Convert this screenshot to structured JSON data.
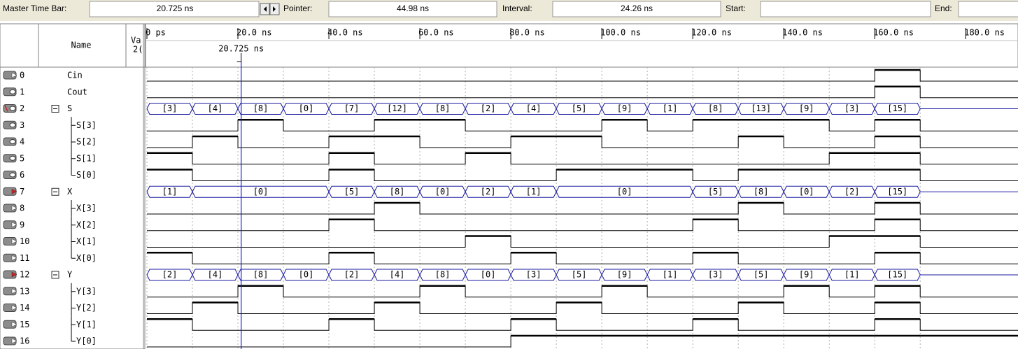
{
  "toolbar": {
    "master_label": "Master Time Bar:",
    "master_value": "20.725 ns",
    "pointer_label": "Pointer:",
    "pointer_value": "44.98 ns",
    "interval_label": "Interval:",
    "interval_value": "24.26 ns",
    "start_label": "Start:",
    "end_label": "End:"
  },
  "header": {
    "name": "Name",
    "value": "Va",
    "value_sub": "2("
  },
  "timeline": {
    "xlim": [
      0,
      191.5
    ],
    "xticks": [
      {
        "value": 0,
        "label": "0 ps"
      },
      {
        "value": 20,
        "label": "20.0 ns"
      },
      {
        "value": 40,
        "label": "40.0 ns"
      },
      {
        "value": 60,
        "label": "60.0 ns"
      },
      {
        "value": 80,
        "label": "80.0 ns"
      },
      {
        "value": 100,
        "label": "100.0 ns"
      },
      {
        "value": 120,
        "label": "120.0 ns"
      },
      {
        "value": 140,
        "label": "140.0 ns"
      },
      {
        "value": 160,
        "label": "160.0 ns"
      },
      {
        "value": 180,
        "label": "180.0 ns"
      }
    ],
    "cursor": {
      "value": 20.725,
      "label": "20.725 ns"
    },
    "time": [
      0,
      10,
      20,
      30,
      40,
      50,
      60,
      70,
      80,
      90,
      100,
      110,
      120,
      130,
      140,
      150,
      160,
      170
    ]
  },
  "signals": [
    {
      "index": 0,
      "name": "Cin",
      "dir": "in",
      "kind": "bit",
      "values": [
        0,
        0,
        0,
        0,
        0,
        0,
        0,
        0,
        0,
        0,
        0,
        0,
        0,
        0,
        0,
        0,
        1,
        0
      ]
    },
    {
      "index": 1,
      "name": "Cout",
      "dir": "out",
      "kind": "bit",
      "values": [
        0,
        0,
        0,
        0,
        0,
        0,
        0,
        0,
        0,
        0,
        0,
        0,
        0,
        0,
        0,
        0,
        1,
        0
      ]
    },
    {
      "index": 2,
      "name": "S",
      "dir": "out",
      "kind": "bus",
      "values": [
        "[3]",
        "[4]",
        "[8]",
        "[0]",
        "[7]",
        "[12]",
        "[8]",
        "[2]",
        "[4]",
        "[5]",
        "[9]",
        "[1]",
        "[8]",
        "[13]",
        "[9]",
        "[3]",
        "[15]",
        null
      ]
    },
    {
      "index": 3,
      "name": "S[3]",
      "dir": "out",
      "kind": "bit",
      "child": true,
      "values": [
        0,
        0,
        1,
        0,
        0,
        1,
        1,
        0,
        0,
        0,
        1,
        0,
        1,
        1,
        1,
        0,
        1,
        0
      ]
    },
    {
      "index": 4,
      "name": "S[2]",
      "dir": "out",
      "kind": "bit",
      "child": true,
      "values": [
        0,
        1,
        0,
        0,
        1,
        1,
        0,
        0,
        1,
        1,
        0,
        0,
        0,
        1,
        0,
        0,
        1,
        0
      ]
    },
    {
      "index": 5,
      "name": "S[1]",
      "dir": "out",
      "kind": "bit",
      "child": true,
      "values": [
        1,
        0,
        0,
        0,
        1,
        0,
        0,
        1,
        0,
        0,
        0,
        0,
        0,
        0,
        0,
        1,
        1,
        0
      ]
    },
    {
      "index": 6,
      "name": "S[0]",
      "dir": "out",
      "kind": "bit",
      "child": true,
      "values": [
        1,
        0,
        0,
        0,
        1,
        0,
        0,
        0,
        0,
        1,
        1,
        1,
        0,
        1,
        1,
        1,
        1,
        0
      ]
    },
    {
      "index": 7,
      "name": "X",
      "dir": "in",
      "kind": "bus",
      "values": [
        "[1]",
        "[0]",
        "[0]",
        "[0]",
        "[5]",
        "[8]",
        "[0]",
        "[2]",
        "[1]",
        "[0]",
        "[0]",
        "[0]",
        "[5]",
        "[8]",
        "[0]",
        "[2]",
        "[15]",
        null
      ]
    },
    {
      "index": 8,
      "name": "X[3]",
      "dir": "in",
      "kind": "bit",
      "child": true,
      "values": [
        0,
        0,
        0,
        0,
        0,
        1,
        0,
        0,
        0,
        0,
        0,
        0,
        0,
        1,
        0,
        0,
        1,
        0
      ]
    },
    {
      "index": 9,
      "name": "X[2]",
      "dir": "in",
      "kind": "bit",
      "child": true,
      "values": [
        0,
        0,
        0,
        0,
        1,
        0,
        0,
        0,
        0,
        0,
        0,
        0,
        1,
        0,
        0,
        0,
        1,
        0
      ]
    },
    {
      "index": 10,
      "name": "X[1]",
      "dir": "in",
      "kind": "bit",
      "child": true,
      "values": [
        0,
        0,
        0,
        0,
        0,
        0,
        0,
        1,
        0,
        0,
        0,
        0,
        0,
        0,
        0,
        1,
        1,
        0
      ]
    },
    {
      "index": 11,
      "name": "X[0]",
      "dir": "in",
      "kind": "bit",
      "child": true,
      "values": [
        1,
        0,
        0,
        0,
        1,
        0,
        0,
        0,
        1,
        0,
        0,
        0,
        1,
        0,
        0,
        0,
        1,
        0
      ]
    },
    {
      "index": 12,
      "name": "Y",
      "dir": "in",
      "kind": "bus",
      "values": [
        "[2]",
        "[4]",
        "[8]",
        "[0]",
        "[2]",
        "[4]",
        "[8]",
        "[0]",
        "[3]",
        "[5]",
        "[9]",
        "[1]",
        "[3]",
        "[5]",
        "[9]",
        "[1]",
        "[15]",
        null
      ]
    },
    {
      "index": 13,
      "name": "Y[3]",
      "dir": "in",
      "kind": "bit",
      "child": true,
      "values": [
        0,
        0,
        1,
        0,
        0,
        0,
        1,
        0,
        0,
        0,
        1,
        0,
        0,
        0,
        1,
        0,
        1,
        0
      ]
    },
    {
      "index": 14,
      "name": "Y[2]",
      "dir": "in",
      "kind": "bit",
      "child": true,
      "values": [
        0,
        1,
        0,
        0,
        0,
        1,
        0,
        0,
        0,
        1,
        0,
        0,
        0,
        1,
        0,
        0,
        1,
        0
      ]
    },
    {
      "index": 15,
      "name": "Y[1]",
      "dir": "in",
      "kind": "bit",
      "child": true,
      "values": [
        1,
        0,
        0,
        0,
        1,
        0,
        0,
        0,
        1,
        0,
        0,
        0,
        1,
        0,
        0,
        0,
        1,
        0
      ]
    },
    {
      "index": 16,
      "name": "Y[0]",
      "dir": "in",
      "kind": "bit",
      "child": true,
      "values": [
        0,
        0,
        0,
        0,
        0,
        0,
        0,
        0,
        1,
        1,
        1,
        1,
        1,
        1,
        1,
        1,
        1,
        1
      ]
    }
  ]
}
